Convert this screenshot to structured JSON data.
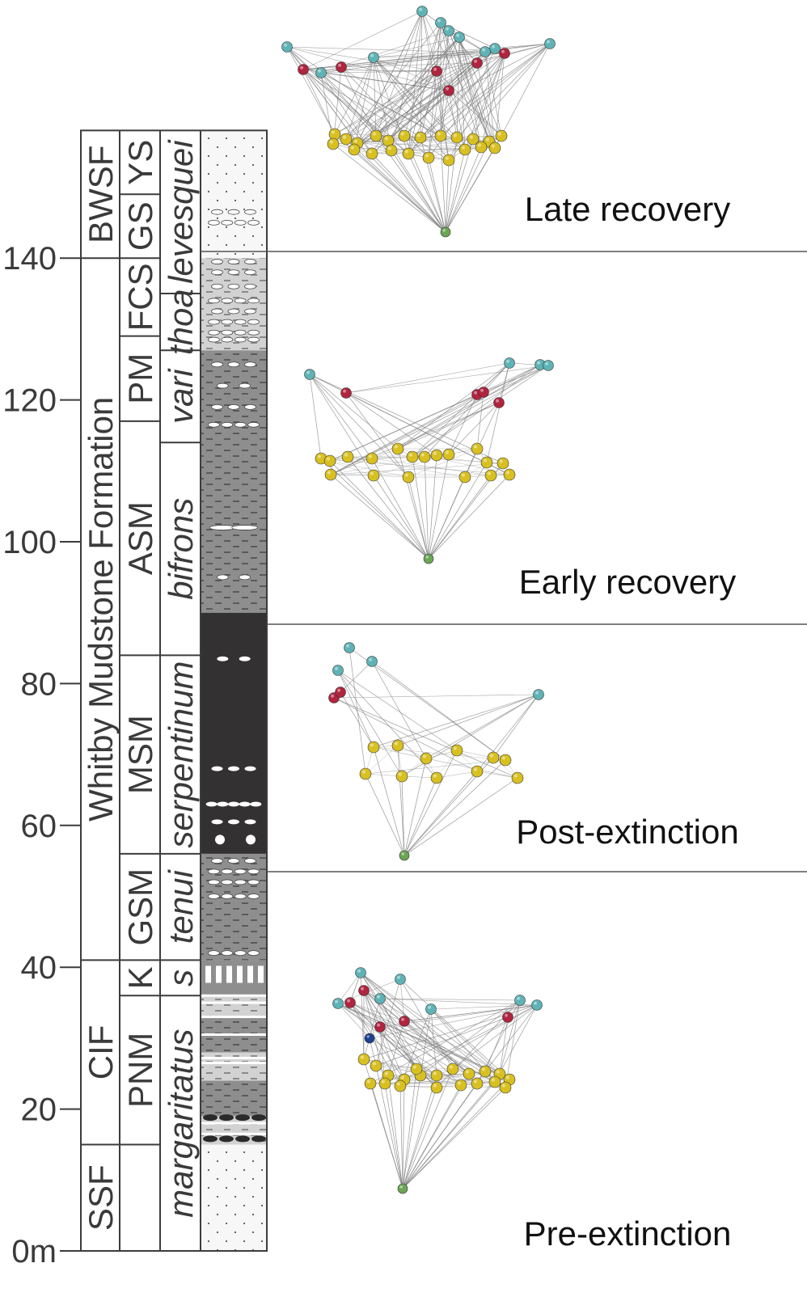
{
  "axis": {
    "ticks": [
      {
        "value": 0,
        "label": "0m"
      },
      {
        "value": 20,
        "label": "20"
      },
      {
        "value": 40,
        "label": "40"
      },
      {
        "value": 60,
        "label": "60"
      },
      {
        "value": 80,
        "label": "80"
      },
      {
        "value": 100,
        "label": "100"
      },
      {
        "value": 120,
        "label": "120"
      },
      {
        "value": 140,
        "label": "140"
      }
    ]
  },
  "formations": [
    {
      "label": "SSF",
      "from": 0,
      "to": 15
    },
    {
      "label": "CIF",
      "from": 15,
      "to": 41
    },
    {
      "label": "Whitby Mudstone Formation",
      "from": 41,
      "to": 140
    },
    {
      "label": "BWSF",
      "from": 140,
      "to": 158
    }
  ],
  "members": [
    {
      "label": "PNM",
      "from": 15,
      "to": 36
    },
    {
      "label": "K",
      "from": 36,
      "to": 41
    },
    {
      "label": "GSM",
      "from": 41,
      "to": 56
    },
    {
      "label": "MSM",
      "from": 56,
      "to": 84
    },
    {
      "label": "ASM",
      "from": 84,
      "to": 117
    },
    {
      "label": "PM",
      "from": 117,
      "to": 129
    },
    {
      "label": "FCS",
      "from": 129,
      "to": 140
    },
    {
      "label": "GS",
      "from": 140,
      "to": 149
    },
    {
      "label": "YS",
      "from": 149,
      "to": 158
    }
  ],
  "zones": [
    {
      "label": "margaritatus",
      "from": 0,
      "to": 36
    },
    {
      "label": "s",
      "from": 36,
      "to": 41
    },
    {
      "label": "tenui",
      "from": 41,
      "to": 56
    },
    {
      "label": "serpentinum",
      "from": 56,
      "to": 84
    },
    {
      "label": "bifrons",
      "from": 84,
      "to": 114
    },
    {
      "label": "vari",
      "from": 114,
      "to": 127
    },
    {
      "label": "thoa",
      "from": 127,
      "to": 135
    },
    {
      "label": "levesquei",
      "from": 135,
      "to": 158
    }
  ],
  "phases": [
    {
      "label": "Late recovery"
    },
    {
      "label": "Early recovery"
    },
    {
      "label": "Post-extinction"
    },
    {
      "label": "Pre-extinction"
    }
  ],
  "colors": {
    "sandstone": "#f7f7f7",
    "light_mudstone": "#d2d2d2",
    "grey_mudstone": "#8e8e8e",
    "black_shale": "#333131",
    "node_teal": "#5fb3b6",
    "node_red": "#b0243e",
    "node_yellow": "#d8c021",
    "node_green": "#6aa654",
    "node_blue": "#1f3f8f",
    "edge": "#7d7d7d",
    "frame": "#3c3c3c"
  }
}
